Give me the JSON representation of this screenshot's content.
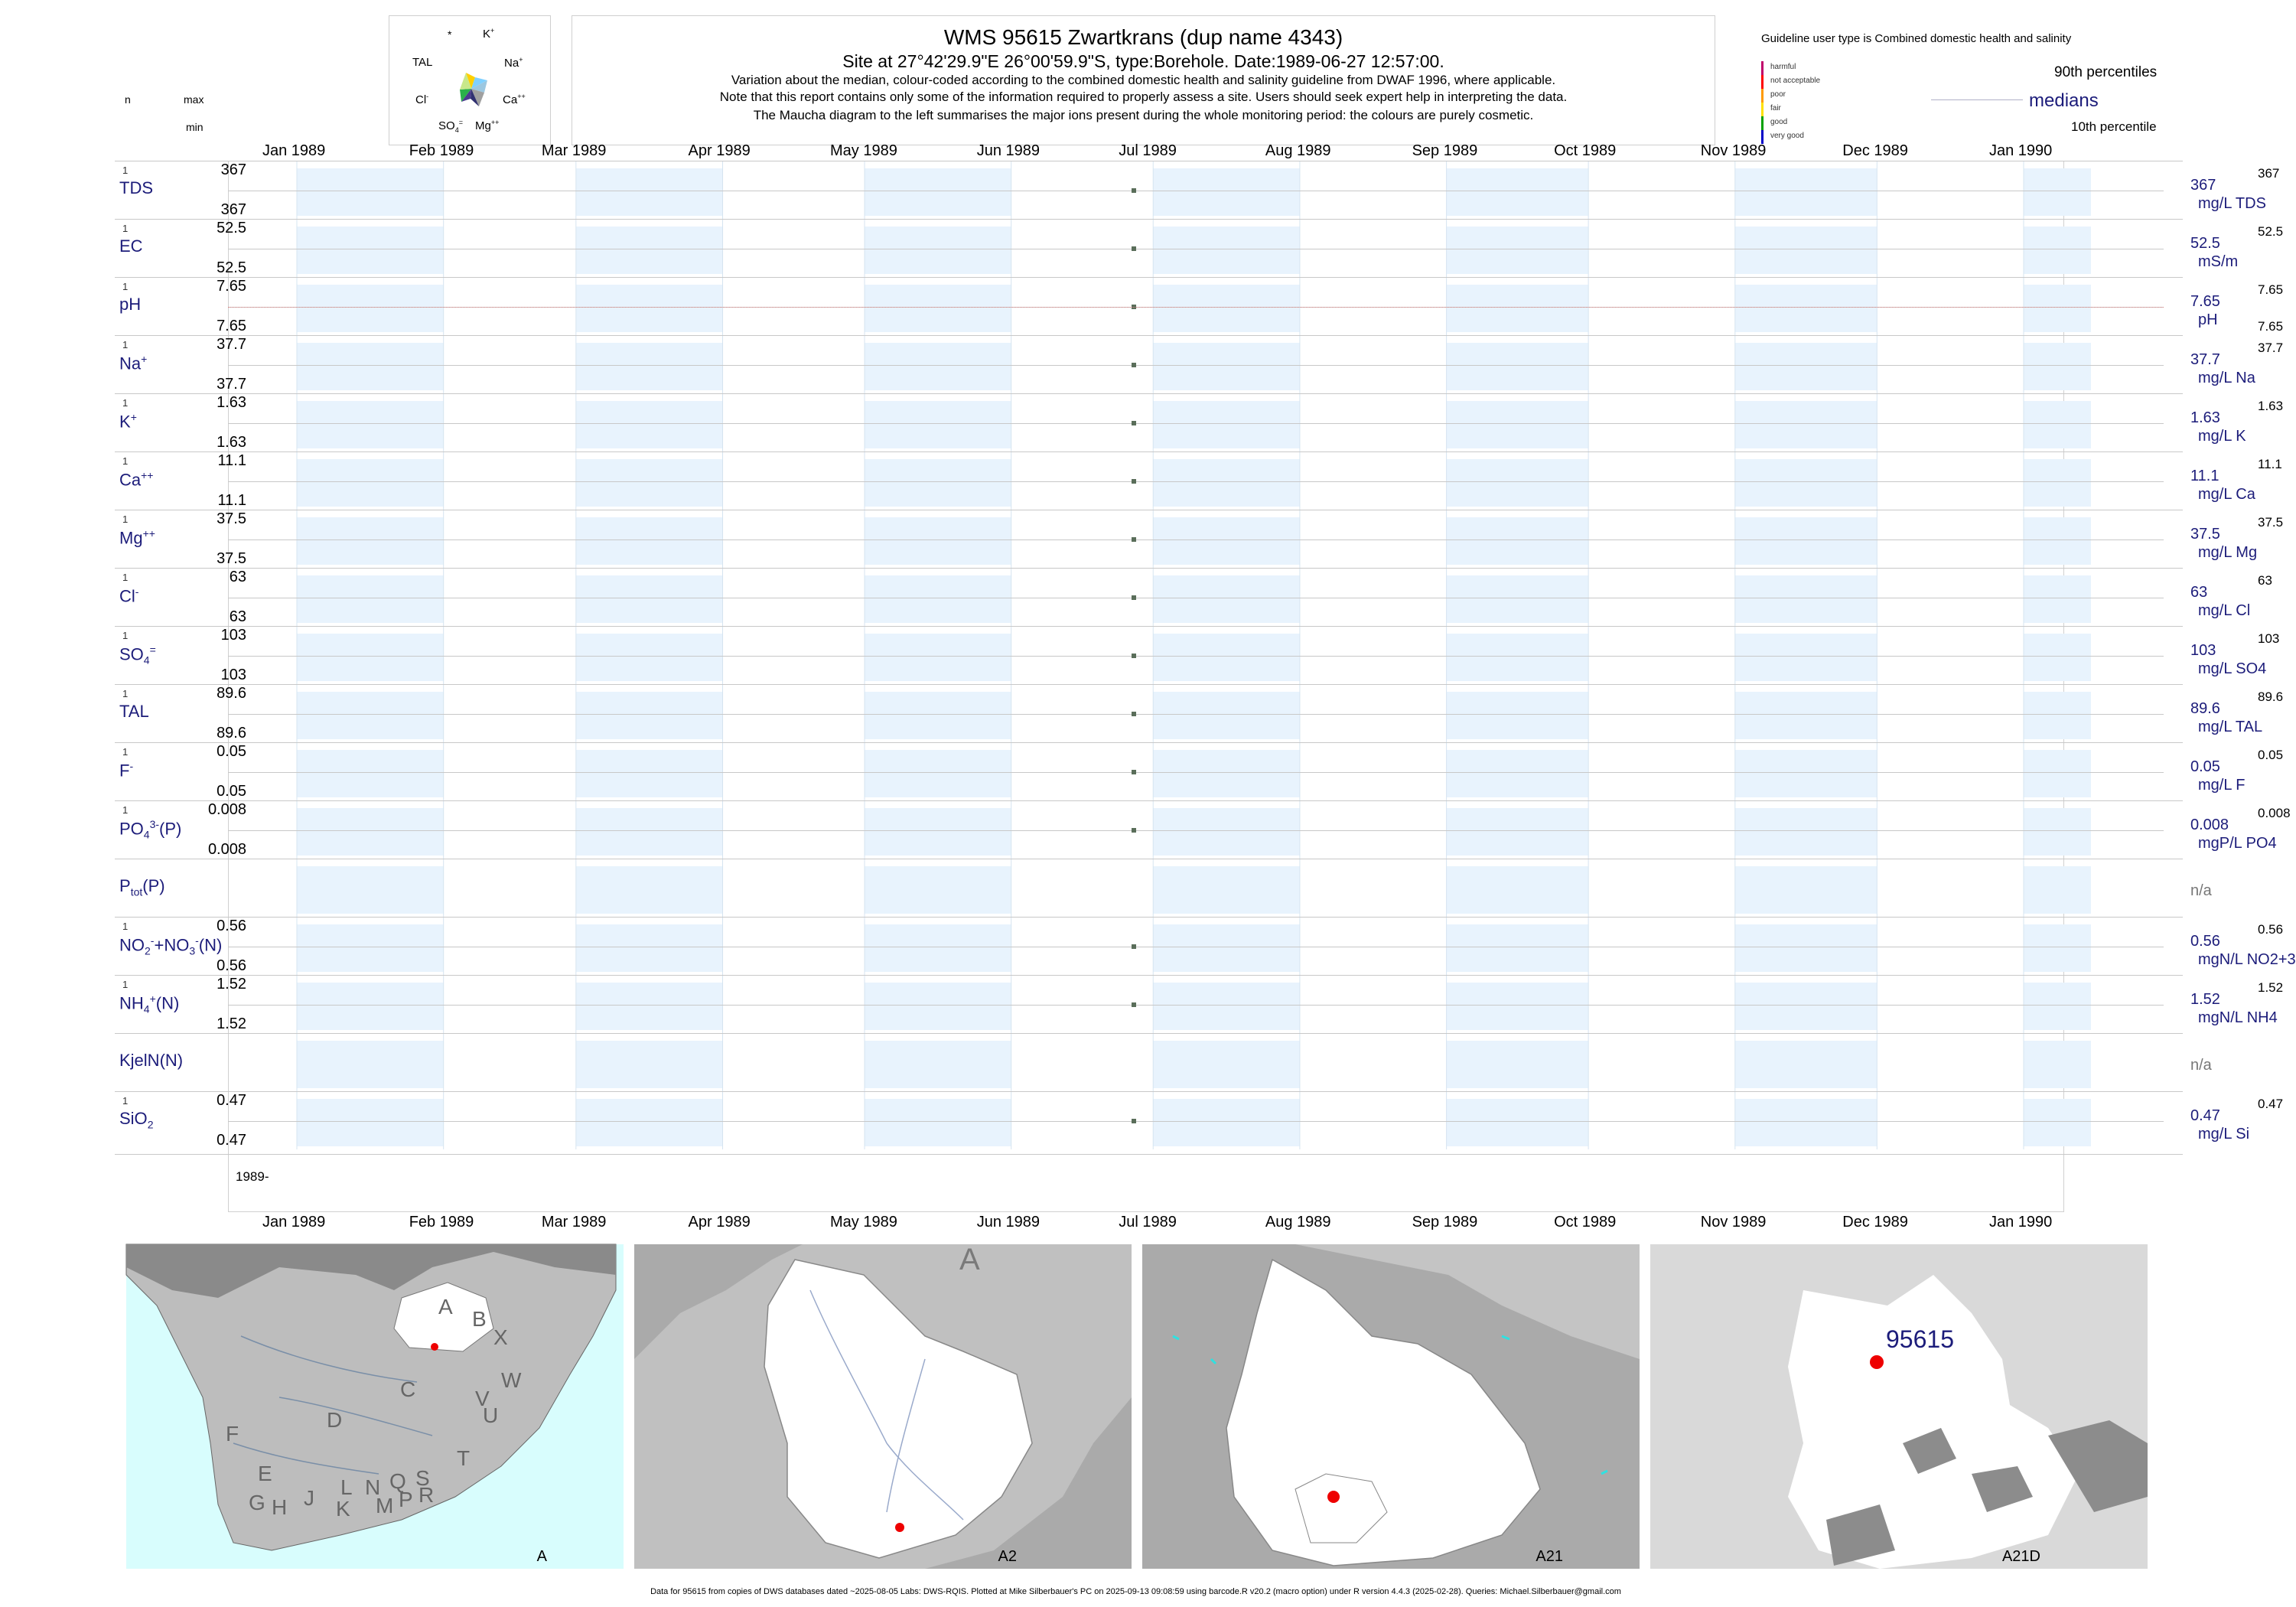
{
  "header": {
    "title": "WMS 95615  Zwartkrans (dup name 4343)",
    "site": "Site at 27°42'29.9\"E 26°00'59.9\"S, type:Borehole. Date:1989-06-27 12:57:00.",
    "note1": "Variation about the median,  colour-coded according to the combined domestic health and salinity guideline from DWAF 1996, where applicable.",
    "note2": "Note that this report contains only some of the information required to properly assess a site. Users should seek expert help in interpreting the data.",
    "note3": "The Maucha diagram to the left summarises the major ions present during the whole monitoring period: the colours are purely cosmetic."
  },
  "left_header": {
    "n": "n",
    "max": "max",
    "min": "min"
  },
  "maucha": {
    "labels": {
      "star": "*",
      "k": "K",
      "na": "Na",
      "ca": "Ca",
      "mg": "Mg",
      "so4": "SO",
      "cl": "Cl",
      "tal": "TAL"
    },
    "sup": {
      "k": "+",
      "na": "+",
      "ca": "++",
      "mg": "++",
      "so4": "=",
      "cl": "-"
    },
    "sub": {
      "so4": "4"
    }
  },
  "legend": {
    "user_type": "Guideline user type is Combined domestic health and salinity",
    "categories": [
      {
        "label": "harmful",
        "color": "#c0006a"
      },
      {
        "label": "not acceptable",
        "color": "#ff0000"
      },
      {
        "label": "poor",
        "color": "#ff9a00"
      },
      {
        "label": "fair",
        "color": "#ffe000"
      },
      {
        "label": "good",
        "color": "#00a000"
      },
      {
        "label": "very good",
        "color": "#0000c8"
      }
    ],
    "p90": "90th percentiles",
    "medians": "medians",
    "p10": "10th percentile"
  },
  "months": [
    "Jan 1989",
    "Feb 1989",
    "Mar 1989",
    "Apr 1989",
    "May 1989",
    "Jun 1989",
    "Jul 1989",
    "Aug 1989",
    "Sep 1989",
    "Oct 1989",
    "Nov 1989",
    "Dec 1989",
    "Jan 1990"
  ],
  "year_label": "1989-",
  "chart_data": {
    "type": "scatter",
    "x_axis": {
      "min": "1989-01-01",
      "max": "1990-01-01",
      "tick_labels": [
        "Jan 1989",
        "Feb 1989",
        "Mar 1989",
        "Apr 1989",
        "May 1989",
        "Jun 1989",
        "Jul 1989",
        "Aug 1989",
        "Sep 1989",
        "Oct 1989",
        "Nov 1989",
        "Dec 1989",
        "Jan 1990"
      ]
    },
    "sample_date": "1989-06-27",
    "series": [
      {
        "label": "TDS",
        "n": "1",
        "max": "367",
        "min": "367",
        "median": "367",
        "unit": "mg/L TDS",
        "p90": "367",
        "p10": "",
        "value": 367
      },
      {
        "label": "EC",
        "n": "1",
        "max": "52.5",
        "min": "52.5",
        "median": "52.5",
        "unit": "mS/m",
        "p90": "52.5",
        "p10": "",
        "value": 52.5
      },
      {
        "label": "pH",
        "n": "1",
        "max": "7.65",
        "min": "7.65",
        "median": "7.65",
        "unit": "pH",
        "p90": "7.65",
        "p10": "7.65",
        "value": 7.65
      },
      {
        "label": "Na",
        "sup": "+",
        "n": "1",
        "max": "37.7",
        "min": "37.7",
        "median": "37.7",
        "unit": "mg/L Na",
        "p90": "37.7",
        "p10": "",
        "value": 37.7
      },
      {
        "label": "K",
        "sup": "+",
        "n": "1",
        "max": "1.63",
        "min": "1.63",
        "median": "1.63",
        "unit": "mg/L K",
        "p90": "1.63",
        "p10": "",
        "value": 1.63
      },
      {
        "label": "Ca",
        "sup": "++",
        "n": "1",
        "max": "11.1",
        "min": "11.1",
        "median": "11.1",
        "unit": "mg/L Ca",
        "p90": "11.1",
        "p10": "",
        "value": 11.1
      },
      {
        "label": "Mg",
        "sup": "++",
        "n": "1",
        "max": "37.5",
        "min": "37.5",
        "median": "37.5",
        "unit": "mg/L Mg",
        "p90": "37.5",
        "p10": "",
        "value": 37.5
      },
      {
        "label": "Cl",
        "sup": "-",
        "n": "1",
        "max": "63",
        "min": "63",
        "median": "63",
        "unit": "mg/L Cl",
        "p90": "63",
        "p10": "",
        "value": 63
      },
      {
        "label": "SO",
        "sub": "4",
        "sup": "=",
        "n": "1",
        "max": "103",
        "min": "103",
        "median": "103",
        "unit": "mg/L SO4",
        "p90": "103",
        "p10": "",
        "value": 103
      },
      {
        "label": "TAL",
        "n": "1",
        "max": "89.6",
        "min": "89.6",
        "median": "89.6",
        "unit": "mg/L TAL",
        "p90": "89.6",
        "p10": "",
        "value": 89.6
      },
      {
        "label": "F",
        "sup": "-",
        "n": "1",
        "max": "0.05",
        "min": "0.05",
        "median": "0.05",
        "unit": "mg/L F",
        "p90": "0.05",
        "p10": "",
        "value": 0.05
      },
      {
        "label": "PO",
        "sub": "4",
        "sup": "3-",
        "suffix": "(P)",
        "n": "1",
        "max": "0.008",
        "min": "0.008",
        "median": "0.008",
        "unit": "mgP/L PO4",
        "p90": "0.008",
        "p10": "",
        "value": 0.008
      },
      {
        "label": "P",
        "sub": "tot",
        "suffix": "(P)",
        "n": "",
        "max": "",
        "min": "",
        "median": "n/a",
        "unit": "",
        "p90": "",
        "p10": "",
        "value": null
      },
      {
        "label": "NO",
        "sub": "2",
        "sup": "-",
        "suffix": "+NO",
        "sub2": "3",
        "sup2": "-",
        "suffix2": "(N)",
        "n": "1",
        "max": "0.56",
        "min": "0.56",
        "median": "0.56",
        "unit": "mgN/L NO2+3",
        "p90": "0.56",
        "p10": "",
        "value": 0.56
      },
      {
        "label": "NH",
        "sub": "4",
        "sup": "+",
        "suffix": "(N)",
        "n": "1",
        "max": "1.52",
        "min": "1.52",
        "median": "1.52",
        "unit": "mgN/L NH4",
        "p90": "1.52",
        "p10": "",
        "value": 1.52
      },
      {
        "label": "KjelN(N)",
        "n": "",
        "max": "",
        "min": "",
        "median": "n/a",
        "unit": "",
        "p90": "",
        "p10": "",
        "value": null
      },
      {
        "label": "SiO",
        "sub": "2",
        "n": "1",
        "max": "0.47",
        "min": "0.47",
        "median": "0.47",
        "unit": "mg/L Si",
        "p90": "0.47",
        "p10": "",
        "value": 0.47
      }
    ]
  },
  "maps": [
    {
      "label": "A",
      "letters": [
        "A",
        "B",
        "X",
        "W",
        "C",
        "V",
        "U",
        "D",
        "T",
        "F",
        "E",
        "G",
        "H",
        "J",
        "K",
        "L",
        "N",
        "M",
        "P",
        "Q",
        "S",
        "R"
      ]
    },
    {
      "label": "A2",
      "letters": [
        "A"
      ]
    },
    {
      "label": "A21",
      "letters": []
    },
    {
      "label": "A21D",
      "station": "95615"
    }
  ],
  "colors": {
    "accent": "#1c1c7a",
    "band": "#e8f3fd",
    "marker": "#5a6e5a",
    "station": "#ee0000",
    "sea": "#d8fdfd",
    "land": "#bdbdbd"
  },
  "footer": "Data for 95615 from copies of DWS databases dated ~2025-08-05 Labs: DWS-RQIS. Plotted at Mike Silberbauer's PC on 2025-09-13 09:08:59 using barcode.R v20.2 (macro option) under R version 4.4.3 (2025-02-28). Queries: Michael.Silberbauer@gmail.com"
}
